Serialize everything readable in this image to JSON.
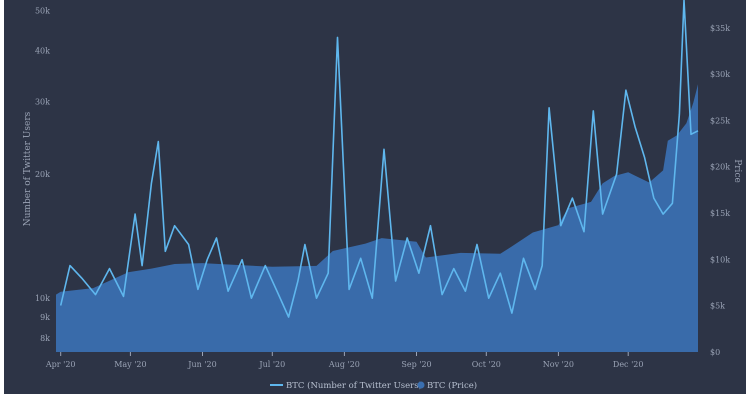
{
  "chart_data": {
    "type": "line",
    "background": "#2d3446",
    "y_left": {
      "label": "Number of Twitter Users",
      "scale": "log",
      "range": [
        7400,
        53000
      ],
      "ticks": [
        8000,
        9000,
        10000,
        20000,
        30000,
        40000,
        50000
      ],
      "tick_labels": [
        "8k",
        "9k",
        "10k",
        "20k",
        "30k",
        "40k",
        "50k"
      ]
    },
    "y_right": {
      "label": "Price",
      "scale": "linear",
      "range": [
        0,
        38000
      ],
      "ticks": [
        0,
        5000,
        10000,
        15000,
        20000,
        25000,
        30000,
        35000
      ],
      "tick_labels": [
        "$0",
        "$5k",
        "$10k",
        "$15k",
        "$20k",
        "$25k",
        "$30k",
        "$35k"
      ]
    },
    "x_axis": {
      "range": [
        "2020-03-30",
        "2020-12-31"
      ],
      "ticks": [
        "2020-04-01",
        "2020-05-01",
        "2020-06-01",
        "2020-07-01",
        "2020-08-01",
        "2020-09-01",
        "2020-10-01",
        "2020-11-01",
        "2020-12-01"
      ],
      "tick_labels": [
        "Apr '20",
        "May '20",
        "Jun '20",
        "Jul '20",
        "Aug '20",
        "Sep '20",
        "Oct '20",
        "Nov '20",
        "Dec '20"
      ]
    },
    "legend": {
      "placement": "bottom-center",
      "items": [
        {
          "label": "BTC (Number of Twitter Users)",
          "color": "#5fb7ee",
          "marker": "line"
        },
        {
          "label": "BTC (Price)",
          "color": "#3a6fb0",
          "marker": "circle"
        }
      ]
    },
    "series": [
      {
        "name": "BTC (Number of Twitter Users)",
        "axis": "left",
        "color": "#5fb7ee",
        "points": [
          [
            "2020-04-01",
            9600
          ],
          [
            "2020-04-05",
            12000
          ],
          [
            "2020-04-10",
            11200
          ],
          [
            "2020-04-16",
            10200
          ],
          [
            "2020-04-22",
            11800
          ],
          [
            "2020-04-28",
            10100
          ],
          [
            "2020-05-03",
            16000
          ],
          [
            "2020-05-06",
            12000
          ],
          [
            "2020-05-10",
            19000
          ],
          [
            "2020-05-13",
            24000
          ],
          [
            "2020-05-16",
            13000
          ],
          [
            "2020-05-20",
            15000
          ],
          [
            "2020-05-26",
            13500
          ],
          [
            "2020-05-30",
            10500
          ],
          [
            "2020-06-03",
            12400
          ],
          [
            "2020-06-07",
            14000
          ],
          [
            "2020-06-12",
            10400
          ],
          [
            "2020-06-18",
            12400
          ],
          [
            "2020-06-22",
            10000
          ],
          [
            "2020-06-28",
            12000
          ],
          [
            "2020-07-03",
            10400
          ],
          [
            "2020-07-08",
            9000
          ],
          [
            "2020-07-12",
            11000
          ],
          [
            "2020-07-15",
            13500
          ],
          [
            "2020-07-20",
            10000
          ],
          [
            "2020-07-25",
            11500
          ],
          [
            "2020-07-29",
            43000
          ],
          [
            "2020-08-03",
            10500
          ],
          [
            "2020-08-08",
            12500
          ],
          [
            "2020-08-13",
            10000
          ],
          [
            "2020-08-18",
            23000
          ],
          [
            "2020-08-23",
            11000
          ],
          [
            "2020-08-28",
            14000
          ],
          [
            "2020-09-02",
            11500
          ],
          [
            "2020-09-07",
            15000
          ],
          [
            "2020-09-12",
            10200
          ],
          [
            "2020-09-17",
            11800
          ],
          [
            "2020-09-22",
            10400
          ],
          [
            "2020-09-27",
            13500
          ],
          [
            "2020-10-02",
            10000
          ],
          [
            "2020-10-07",
            11500
          ],
          [
            "2020-10-12",
            9200
          ],
          [
            "2020-10-17",
            12500
          ],
          [
            "2020-10-22",
            10500
          ],
          [
            "2020-10-25",
            12000
          ],
          [
            "2020-10-28",
            29000
          ],
          [
            "2020-11-02",
            15000
          ],
          [
            "2020-11-07",
            17500
          ],
          [
            "2020-11-12",
            14500
          ],
          [
            "2020-11-16",
            28500
          ],
          [
            "2020-11-20",
            16000
          ],
          [
            "2020-11-26",
            20000
          ],
          [
            "2020-11-30",
            32000
          ],
          [
            "2020-12-04",
            26000
          ],
          [
            "2020-12-08",
            22000
          ],
          [
            "2020-12-12",
            17500
          ],
          [
            "2020-12-16",
            16000
          ],
          [
            "2020-12-20",
            17000
          ],
          [
            "2020-12-23",
            28000
          ],
          [
            "2020-12-25",
            53000
          ],
          [
            "2020-12-28",
            25000
          ],
          [
            "2020-12-31",
            25500
          ]
        ]
      },
      {
        "name": "BTC (Price)",
        "axis": "right",
        "color": "#3a6fb0",
        "fill": "area",
        "points": [
          [
            "2020-03-30",
            6200
          ],
          [
            "2020-04-01",
            6500
          ],
          [
            "2020-04-15",
            6900
          ],
          [
            "2020-04-30",
            8600
          ],
          [
            "2020-05-10",
            9000
          ],
          [
            "2020-05-20",
            9500
          ],
          [
            "2020-06-01",
            9600
          ],
          [
            "2020-06-15",
            9400
          ],
          [
            "2020-07-01",
            9200
          ],
          [
            "2020-07-20",
            9300
          ],
          [
            "2020-07-27",
            10900
          ],
          [
            "2020-08-10",
            11700
          ],
          [
            "2020-08-17",
            12300
          ],
          [
            "2020-09-01",
            11900
          ],
          [
            "2020-09-05",
            10200
          ],
          [
            "2020-09-20",
            10700
          ],
          [
            "2020-10-07",
            10600
          ],
          [
            "2020-10-12",
            11400
          ],
          [
            "2020-10-21",
            12900
          ],
          [
            "2020-11-01",
            13700
          ],
          [
            "2020-11-05",
            15500
          ],
          [
            "2020-11-15",
            16200
          ],
          [
            "2020-11-20",
            18200
          ],
          [
            "2020-11-25",
            19000
          ],
          [
            "2020-12-01",
            19400
          ],
          [
            "2020-12-10",
            18300
          ],
          [
            "2020-12-16",
            19600
          ],
          [
            "2020-12-18",
            22800
          ],
          [
            "2020-12-22",
            23400
          ],
          [
            "2020-12-26",
            24700
          ],
          [
            "2020-12-29",
            26900
          ],
          [
            "2020-12-31",
            28900
          ]
        ]
      }
    ]
  }
}
